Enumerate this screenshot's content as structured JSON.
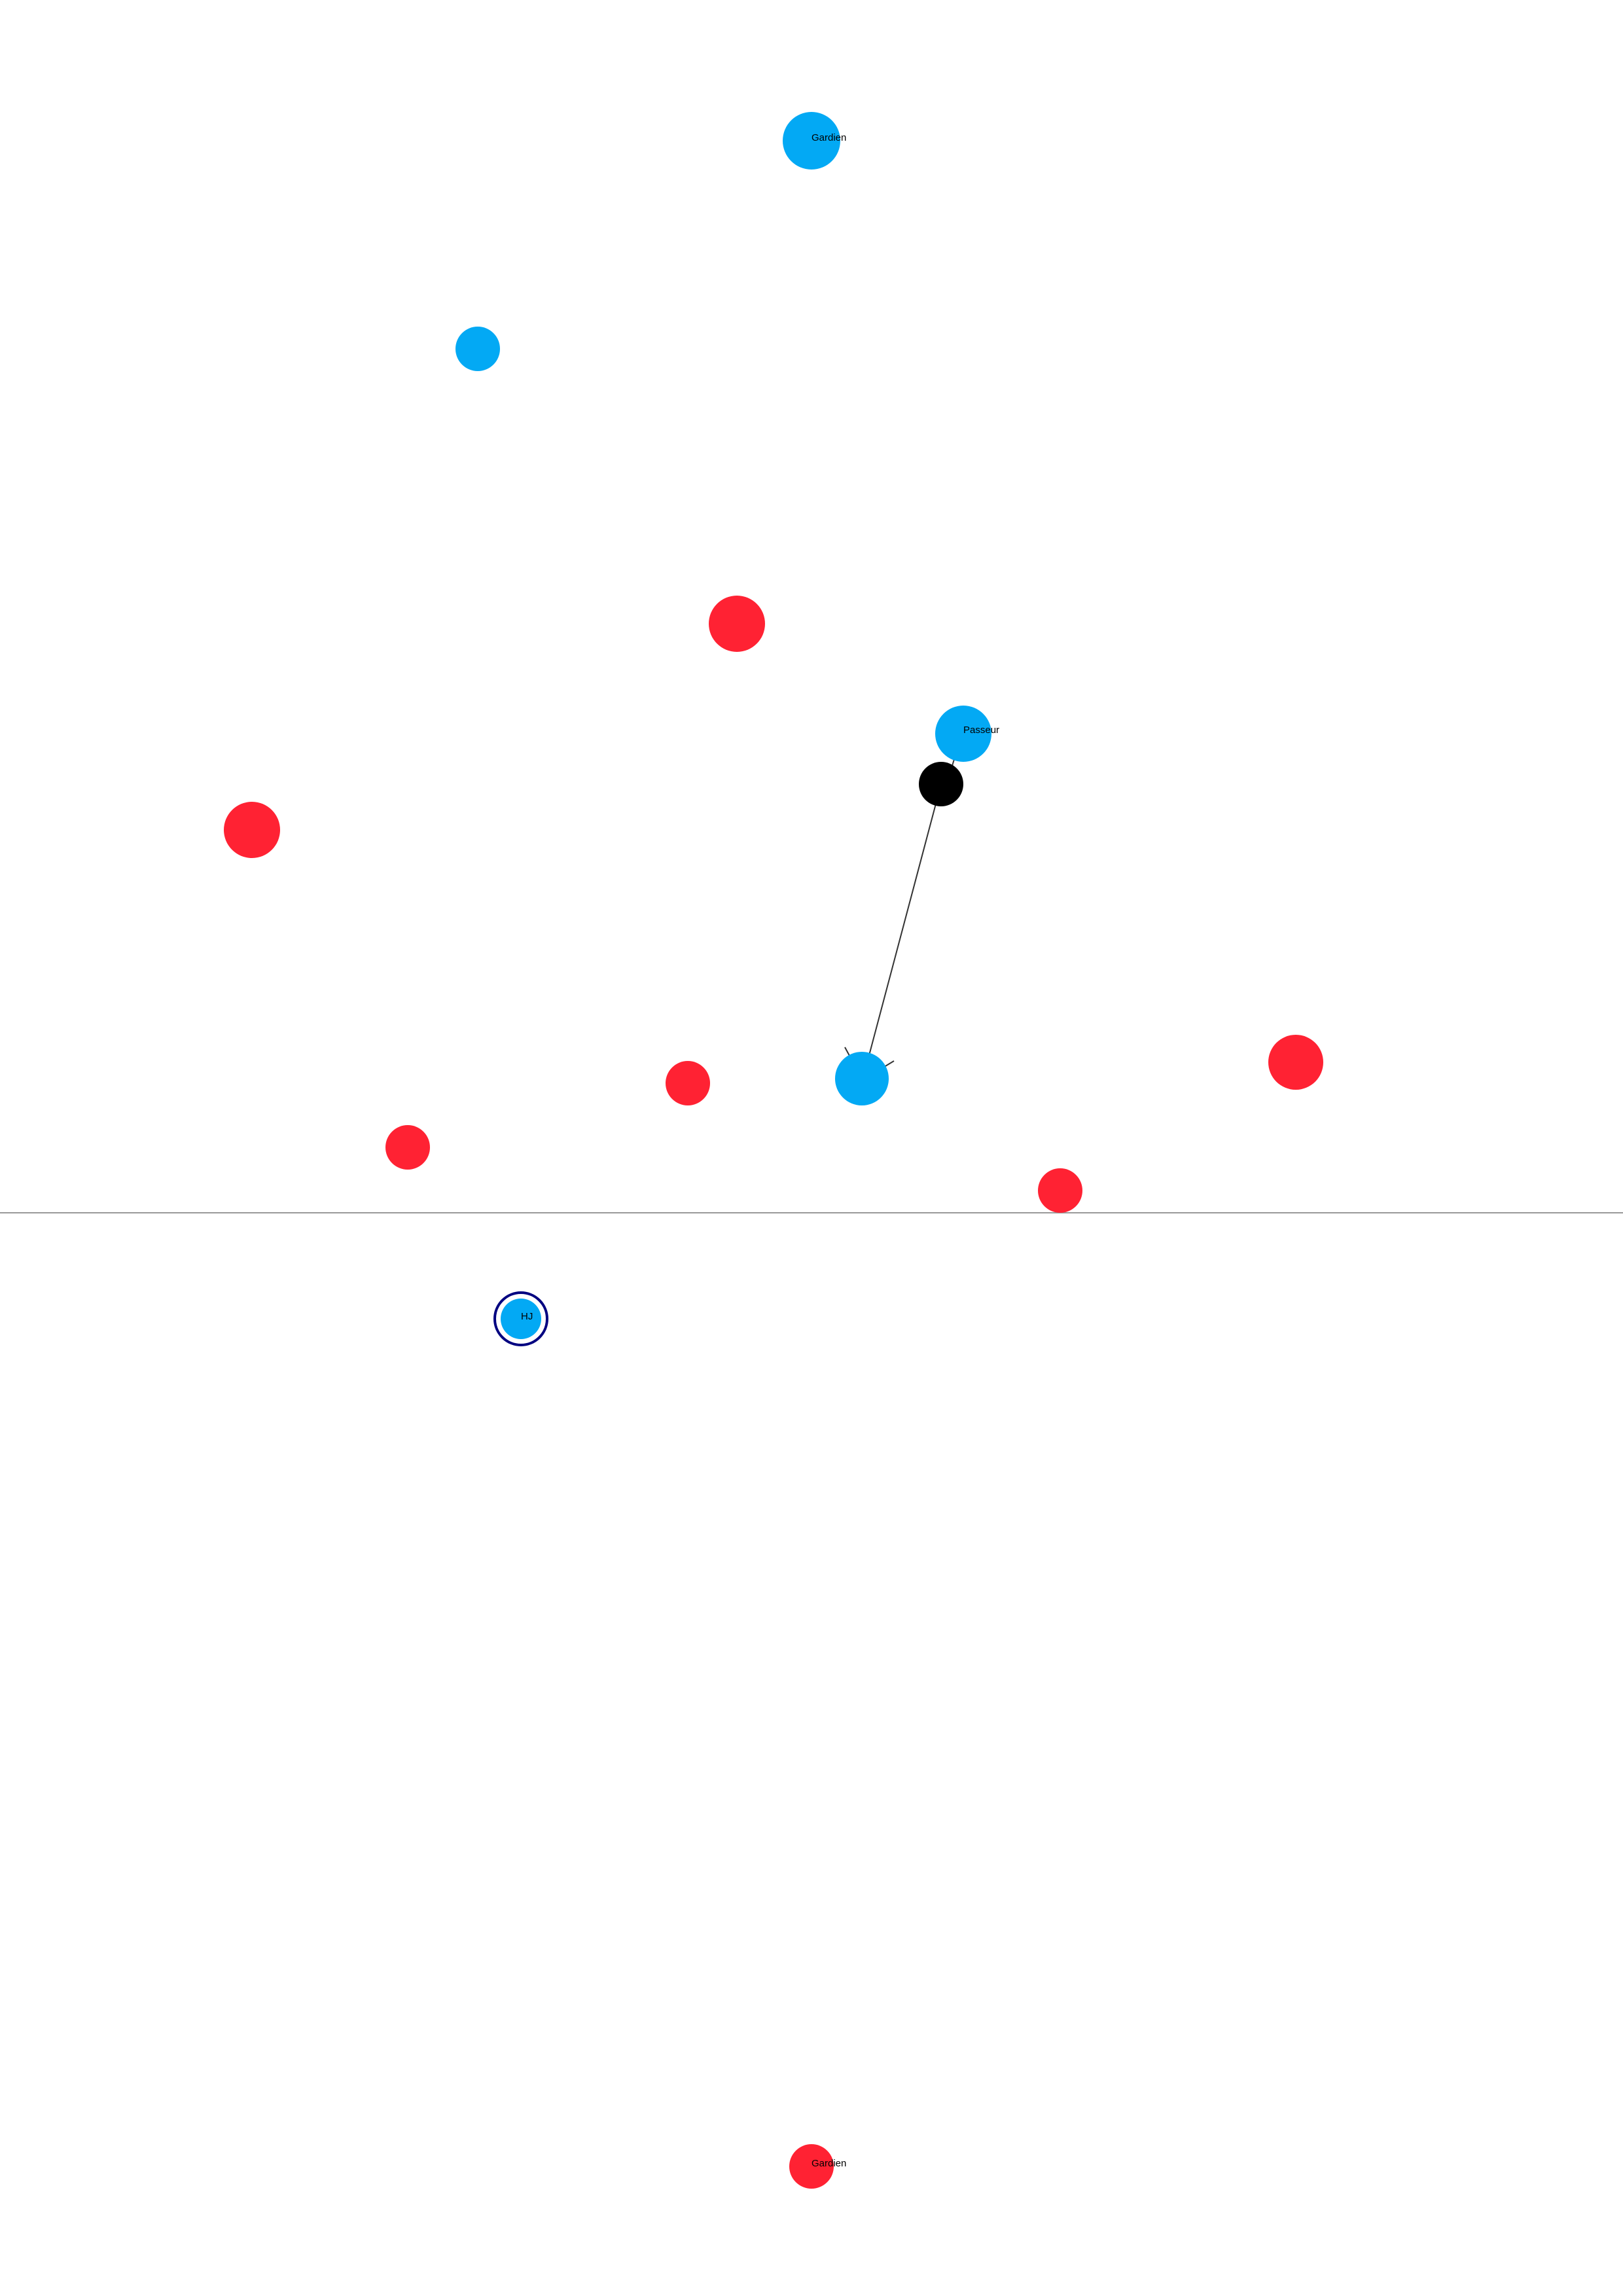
{
  "colors": {
    "team_blue": "#03a9f4",
    "team_red": "#ff2233",
    "ball": "#000000",
    "midline": "#999999",
    "arrow": "#333333",
    "highlight_ring": "#000080",
    "background": "#ffffff"
  },
  "labels": {
    "blue_goalkeeper": "Gardien",
    "attacker": "Passeur",
    "highlighted_player": "HJ",
    "red_goalkeeper": "Gardien"
  }
}
